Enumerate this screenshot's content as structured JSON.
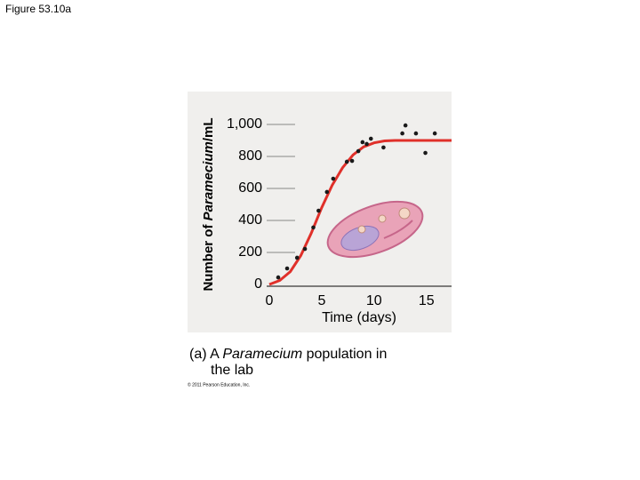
{
  "slide": {
    "figure_label": "Figure 53.10a",
    "caption": [
      "(a) A ",
      "Paramecium",
      " population in",
      "the lab"
    ],
    "copyright": "© 2011 Pearson Education, Inc."
  },
  "chart_data": {
    "type": "scatter",
    "ylabel": [
      "Number of ",
      "Paramecium",
      "/mL"
    ],
    "xlabel": "Time (days)",
    "xlim": [
      0,
      17.4
    ],
    "ylim": [
      0,
      1200
    ],
    "xticks": [
      0,
      5,
      10,
      15
    ],
    "yticks": [
      0,
      200,
      400,
      600,
      800,
      {
        "value": 1000,
        "label": "1,000"
      }
    ],
    "points": {
      "color": "#1a1a1a",
      "x": [
        0.85,
        1.7,
        2.65,
        3.4,
        4.2,
        4.7,
        5.5,
        6.1,
        7.4,
        7.9,
        8.5,
        8.9,
        9.3,
        9.7,
        10.9,
        12.7,
        13.0,
        14.0,
        14.9,
        15.8
      ],
      "values": [
        44,
        100,
        167,
        222,
        356,
        461,
        578,
        661,
        767,
        772,
        833,
        889,
        878,
        911,
        856,
        944,
        994,
        944,
        822,
        944
      ]
    },
    "curve": {
      "color": "#e0302a",
      "x": [
        0,
        1,
        2,
        3,
        4,
        5,
        6,
        7,
        8,
        9,
        10,
        11,
        12,
        15,
        17.4
      ],
      "values": [
        0,
        25,
        80,
        180,
        320,
        480,
        620,
        730,
        810,
        860,
        885,
        897,
        900,
        900,
        900
      ]
    }
  }
}
